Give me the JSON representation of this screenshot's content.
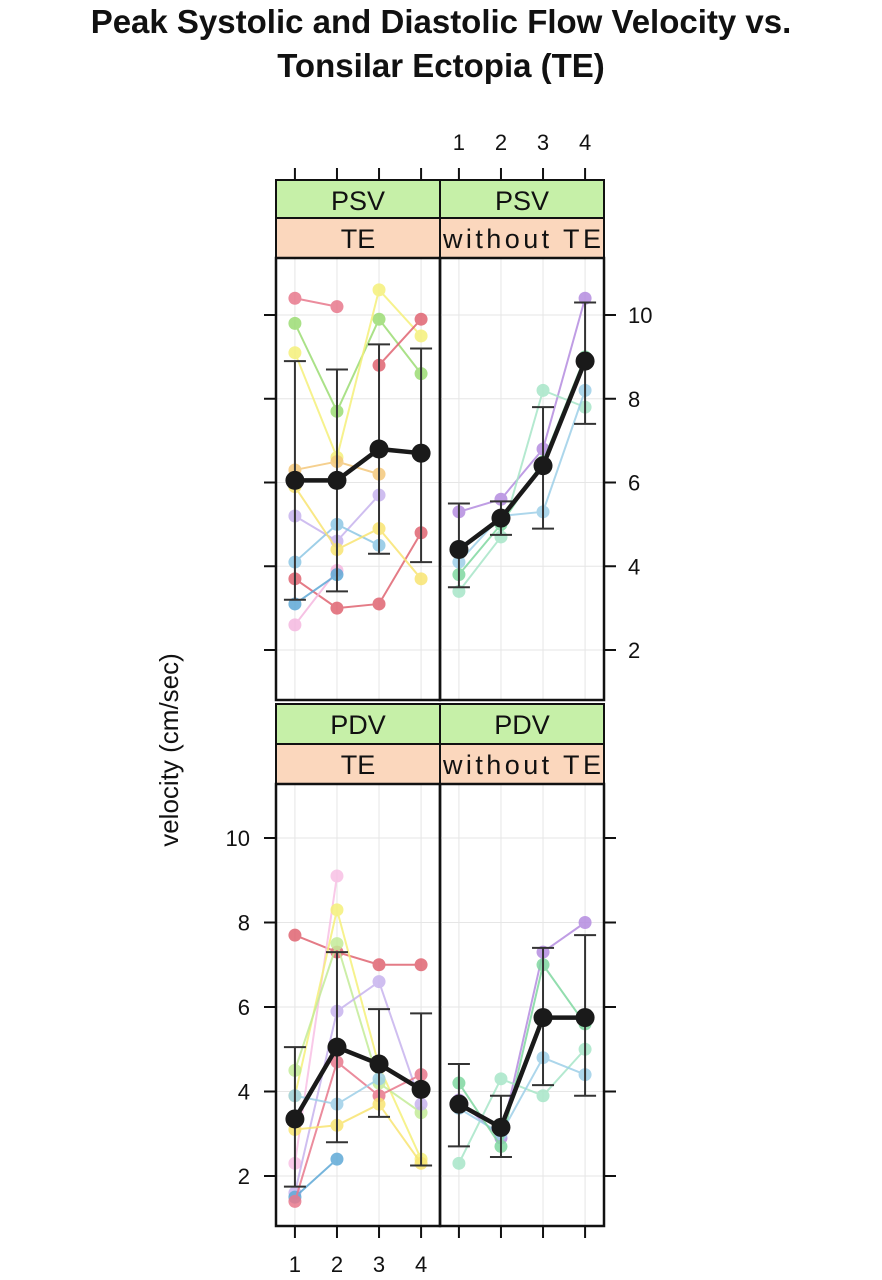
{
  "chart_data": {
    "type": "line",
    "title_line1": "Peak Systolic and Diastolic Flow Velocity vs.",
    "title_line2": "Tonsilar Ectopia (TE)",
    "ylabel": "velocity (cm/sec)",
    "x_ticks": [
      "1",
      "2",
      "3",
      "4"
    ],
    "y_ticks": [
      "2",
      "4",
      "6",
      "8",
      "10"
    ],
    "ylim": [
      1,
      11
    ],
    "xlim": [
      0.55,
      4.45
    ],
    "grid": true,
    "colors": {
      "strip_measure": "#c6f0a8",
      "strip_group": "#fbd7bd",
      "mean": "#1a1a1a",
      "grid": "#e6e6e6"
    },
    "panels": [
      {
        "measure": "PSV",
        "group": "TE",
        "mean": {
          "values": [
            6.05,
            6.05,
            6.8,
            6.7
          ],
          "lower": [
            3.2,
            3.4,
            4.3,
            4.1
          ],
          "upper": [
            8.9,
            8.7,
            9.3,
            9.2
          ]
        },
        "subjects": [
          {
            "color": "#e8788c",
            "values": [
              10.4,
              10.2,
              null,
              null
            ]
          },
          {
            "color": "#9cdc74",
            "values": [
              9.8,
              7.7,
              9.9,
              8.6
            ]
          },
          {
            "color": "#f5f07a",
            "values": [
              9.1,
              6.6,
              10.6,
              9.5
            ]
          },
          {
            "color": "#f4c87c",
            "values": [
              6.3,
              6.5,
              6.2,
              null
            ]
          },
          {
            "color": "#c7b3ee",
            "values": [
              5.2,
              4.6,
              5.7,
              null
            ]
          },
          {
            "color": "#8ec7e4",
            "values": [
              4.1,
              5.0,
              4.5,
              null
            ]
          },
          {
            "color": "#e06472",
            "values": [
              3.7,
              3.0,
              3.1,
              4.8
            ]
          },
          {
            "color": "#f8e472",
            "values": [
              5.9,
              4.4,
              4.9,
              3.7
            ]
          },
          {
            "color": "#e06472",
            "values": [
              null,
              null,
              8.8,
              9.9
            ]
          },
          {
            "color": "#f5b8e0",
            "values": [
              2.6,
              3.9,
              null,
              null
            ]
          },
          {
            "color": "#5fa9d6",
            "values": [
              3.1,
              3.8,
              null,
              null
            ]
          }
        ]
      },
      {
        "measure": "PSV",
        "group": "without TE",
        "mean": {
          "values": [
            4.4,
            5.15,
            6.4,
            8.9
          ],
          "lower": [
            3.5,
            4.75,
            4.9,
            7.4
          ],
          "upper": [
            5.5,
            5.55,
            7.8,
            10.3
          ]
        },
        "subjects": [
          {
            "color": "#b58ce0",
            "values": [
              5.3,
              5.6,
              6.8,
              10.4
            ]
          },
          {
            "color": "#a8e6c8",
            "values": [
              3.4,
              4.7,
              8.2,
              7.8
            ]
          },
          {
            "color": "#9ed0e8",
            "values": [
              4.1,
              5.2,
              5.3,
              8.2
            ]
          },
          {
            "color": "#80d8a0",
            "values": [
              3.8,
              5.0,
              6.5,
              9.0
            ]
          }
        ]
      },
      {
        "measure": "PDV",
        "group": "TE",
        "mean": {
          "values": [
            3.35,
            5.05,
            4.65,
            4.05
          ],
          "lower": [
            1.75,
            2.8,
            3.4,
            2.25
          ],
          "upper": [
            5.05,
            7.3,
            5.95,
            5.85
          ]
        },
        "subjects": [
          {
            "color": "#e06472",
            "values": [
              7.7,
              7.3,
              7.0,
              7.0
            ]
          },
          {
            "color": "#f8c0e4",
            "values": [
              2.3,
              9.1,
              null,
              null
            ]
          },
          {
            "color": "#f5f07a",
            "values": [
              3.9,
              8.3,
              4.6,
              2.4
            ]
          },
          {
            "color": "#c4ec98",
            "values": [
              4.5,
              7.5,
              4.2,
              3.5
            ]
          },
          {
            "color": "#c7b3ee",
            "values": [
              1.6,
              5.9,
              6.6,
              3.7
            ]
          },
          {
            "color": "#5fa9d6",
            "values": [
              1.5,
              2.4,
              null,
              null
            ]
          },
          {
            "color": "#e8788c",
            "values": [
              1.4,
              4.7,
              3.9,
              4.4
            ]
          },
          {
            "color": "#9ed0e8",
            "values": [
              3.9,
              3.7,
              4.3,
              null
            ]
          },
          {
            "color": "#f8e472",
            "values": [
              3.1,
              3.2,
              3.7,
              2.3
            ]
          }
        ]
      },
      {
        "measure": "PDV",
        "group": "without TE",
        "mean": {
          "values": [
            3.7,
            3.15,
            5.75,
            5.75
          ],
          "lower": [
            2.7,
            2.45,
            4.15,
            3.9
          ],
          "upper": [
            4.65,
            3.9,
            7.4,
            7.7
          ]
        },
        "subjects": [
          {
            "color": "#b58ce0",
            "values": [
              3.8,
              2.9,
              7.3,
              8.0
            ]
          },
          {
            "color": "#a8e6c8",
            "values": [
              2.3,
              4.3,
              3.9,
              5.0
            ]
          },
          {
            "color": "#9ed0e8",
            "values": [
              3.6,
              3.0,
              4.8,
              4.4
            ]
          },
          {
            "color": "#80d8a0",
            "values": [
              4.2,
              2.7,
              7.0,
              5.6
            ]
          }
        ]
      }
    ]
  }
}
